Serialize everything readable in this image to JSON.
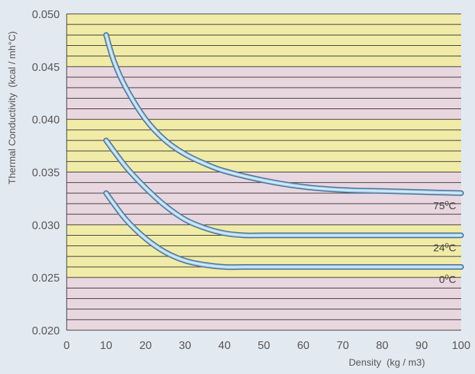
{
  "chart_data": {
    "type": "line",
    "title": "",
    "xlabel": "Density",
    "xlabel_unit": "(kg / m3)",
    "ylabel": "Thermal Conductivity",
    "ylabel_unit": "(kcal / mh°C)",
    "xlim": [
      0,
      100
    ],
    "ylim": [
      0.02,
      0.05
    ],
    "x_ticks": [
      0,
      10,
      20,
      30,
      40,
      50,
      60,
      70,
      80,
      90,
      100
    ],
    "y_ticks": [
      "0.020",
      "0.025",
      "0.030",
      "0.035",
      "0.040",
      "0.045",
      "0.050"
    ],
    "grid": true,
    "band_colors": [
      "#f0eba6",
      "#e9d7df"
    ],
    "line_color": "#a8d3ee",
    "series": [
      {
        "name": "75°C",
        "label_num": "75",
        "label_unit": "C",
        "x": [
          10,
          12,
          15,
          20,
          25,
          30,
          35,
          40,
          50,
          60,
          70,
          80,
          90,
          100
        ],
        "y": [
          0.048,
          0.0455,
          0.043,
          0.04,
          0.038,
          0.0367,
          0.0358,
          0.0351,
          0.0342,
          0.0336,
          0.0333,
          0.0332,
          0.0331,
          0.033
        ]
      },
      {
        "name": "24°C",
        "label_num": "24",
        "label_unit": "C",
        "x": [
          10,
          15,
          20,
          25,
          30,
          35,
          40,
          45,
          50,
          60,
          70,
          80,
          90,
          100
        ],
        "y": [
          0.038,
          0.0355,
          0.0335,
          0.0318,
          0.0305,
          0.0297,
          0.0292,
          0.029,
          0.029,
          0.029,
          0.029,
          0.029,
          0.029,
          0.029
        ]
      },
      {
        "name": "0°C",
        "label_num": "0",
        "label_unit": "C",
        "x": [
          10,
          15,
          20,
          25,
          30,
          35,
          40,
          45,
          50,
          60,
          70,
          80,
          90,
          100
        ],
        "y": [
          0.033,
          0.0305,
          0.0287,
          0.0274,
          0.0266,
          0.0262,
          0.026,
          0.026,
          0.026,
          0.026,
          0.026,
          0.026,
          0.026,
          0.026
        ]
      }
    ]
  }
}
